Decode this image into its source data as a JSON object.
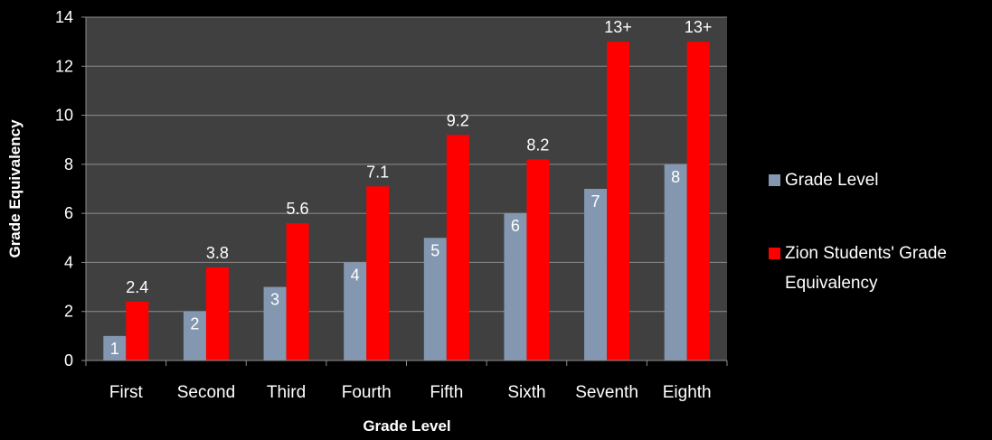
{
  "chart_data": {
    "type": "bar",
    "title": "",
    "xlabel": "Grade Level",
    "ylabel": "Grade Equivalency",
    "ylim": [
      0,
      14
    ],
    "yticks": [
      0,
      2,
      4,
      6,
      8,
      10,
      12,
      14
    ],
    "grid": true,
    "legend_position": "right",
    "categories": [
      "First",
      "Second",
      "Third",
      "Fourth",
      "Fifth",
      "Sixth",
      "Seventh",
      "Eighth"
    ],
    "series": [
      {
        "name": "Grade Level",
        "color": "#8497B0",
        "values": [
          1,
          2,
          3,
          4,
          5,
          6,
          7,
          8
        ],
        "labels": [
          "1",
          "2",
          "3",
          "4",
          "5",
          "6",
          "7",
          "8"
        ],
        "label_position": "inside"
      },
      {
        "name": "Zion Students' Grade Equivalency",
        "color": "#FF0000",
        "values": [
          2.4,
          3.8,
          5.6,
          7.1,
          9.2,
          8.2,
          13,
          13
        ],
        "labels": [
          "2.4",
          "3.8",
          "5.6",
          "7.1",
          "9.2",
          "8.2",
          "13+",
          "13+"
        ],
        "label_position": "above"
      }
    ],
    "legend": {
      "items": [
        {
          "text_lines": [
            "Grade Level"
          ],
          "color": "#8497B0"
        },
        {
          "text_lines": [
            "Zion Students' Grade",
            "Equivalency"
          ],
          "color": "#FF0000"
        }
      ]
    },
    "plot_background": "#404040",
    "page_background": "#000000",
    "text_color": "#FFFFFF"
  }
}
